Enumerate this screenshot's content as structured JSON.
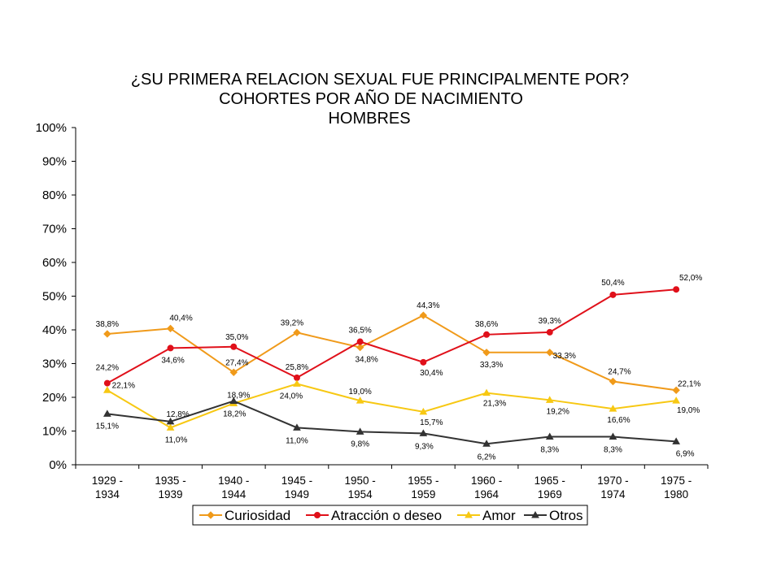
{
  "chart_data": {
    "type": "line",
    "title_lines": [
      "¿SU PRIMERA RELACION SEXUAL FUE PRINCIPALMENTE POR?",
      "COHORTES POR AÑO DE NACIMIENTO",
      "HOMBRES"
    ],
    "xlabel": "",
    "ylabel": "",
    "categories": [
      [
        "1929 -",
        "1934"
      ],
      [
        "1935 -",
        "1939"
      ],
      [
        "1940 -",
        "1944"
      ],
      [
        "1945 -",
        "1949"
      ],
      [
        "1950 -",
        "1954"
      ],
      [
        "1955 -",
        "1959"
      ],
      [
        "1960 -",
        "1964"
      ],
      [
        "1965 -",
        "1969"
      ],
      [
        "1970 -",
        "1974"
      ],
      [
        "1975 -",
        "1980"
      ]
    ],
    "yticks": [
      "0%",
      "10%",
      "20%",
      "30%",
      "40%",
      "50%",
      "60%",
      "70%",
      "80%",
      "90%",
      "100%"
    ],
    "ylim": [
      0,
      100
    ],
    "grid": false,
    "legend_position": "bottom",
    "series": [
      {
        "name": "Curiosidad",
        "color": "#f09a1a",
        "marker": "diamond",
        "values": [
          38.8,
          40.4,
          27.4,
          39.2,
          34.8,
          44.3,
          33.3,
          33.3,
          24.7,
          22.1
        ],
        "labels": [
          "38,8%",
          "40,4%",
          "27,4%",
          "39,2%",
          "34,8%",
          "44,3%",
          "33,3%",
          "33,3%",
          "24,7%",
          "22,1%"
        ]
      },
      {
        "name": "Atracción o deseo",
        "color": "#e0101a",
        "marker": "circle",
        "values": [
          24.2,
          34.6,
          35.0,
          25.8,
          36.5,
          30.4,
          38.6,
          39.3,
          50.4,
          52.0
        ],
        "labels": [
          "24,2%",
          "34,6%",
          "35,0%",
          "25,8%",
          "36,5%",
          "30,4%",
          "38,6%",
          "39,3%",
          "50,4%",
          "52,0%"
        ]
      },
      {
        "name": "Amor",
        "color": "#f7c813",
        "marker": "triangle",
        "values": [
          22.1,
          11.0,
          18.2,
          24.0,
          19.0,
          15.7,
          21.3,
          19.2,
          16.6,
          19.0
        ],
        "labels": [
          "22,1%",
          "11,0%",
          "18,2%",
          "24,0%",
          "19,0%",
          "15,7%",
          "21,3%",
          "19,2%",
          "16,6%",
          "19,0%"
        ]
      },
      {
        "name": "Otros",
        "color": "#333333",
        "marker": "triangle",
        "values": [
          15.1,
          12.8,
          18.9,
          11.0,
          9.8,
          9.3,
          6.2,
          8.3,
          8.3,
          6.9
        ],
        "labels": [
          "15,1%",
          "12,8%",
          "18,9%",
          "11,0%",
          "9,8%",
          "9,3%",
          "6,2%",
          "8,3%",
          "8,3%",
          "6,9%"
        ]
      }
    ]
  }
}
